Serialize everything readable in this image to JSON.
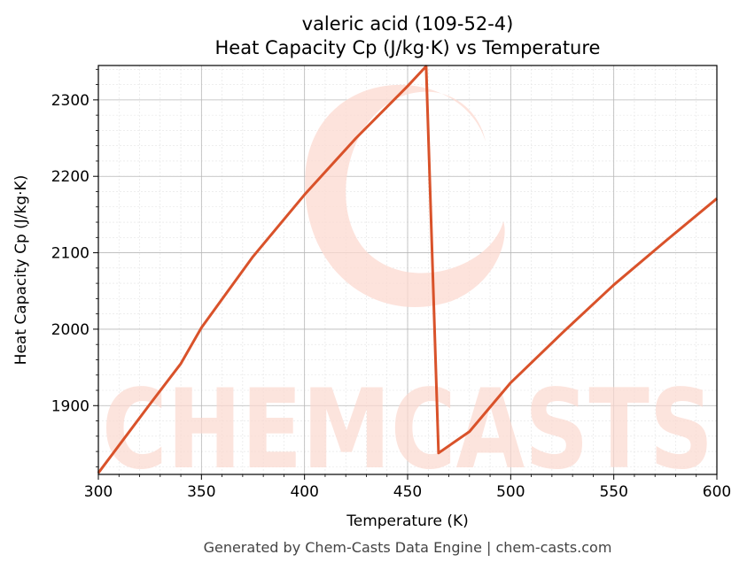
{
  "chart_data": {
    "type": "line",
    "title": "valeric acid (109-52-4)",
    "subtitle": "Heat Capacity Cp (J/kg·K) vs Temperature",
    "xlabel": "Temperature (K)",
    "ylabel": "Heat Capacity Cp (J/kg·K)",
    "xlim": [
      300,
      600
    ],
    "ylim": [
      1810,
      2345
    ],
    "x_ticks": [
      300,
      350,
      400,
      450,
      500,
      550,
      600
    ],
    "y_ticks": [
      1900,
      2000,
      2100,
      2200,
      2300
    ],
    "grid": true,
    "line_color": "#d9522a",
    "series": [
      {
        "x": [
          300,
          310,
          325,
          340,
          350,
          375,
          400,
          425,
          450,
          459,
          465,
          480,
          500,
          525,
          550,
          575,
          600
        ],
        "y": [
          1812,
          1848,
          1902,
          1955,
          2002,
          2095,
          2176,
          2250,
          2318,
          2344,
          1838,
          1866,
          1930,
          1995,
          2058,
          2115,
          2171
        ]
      }
    ]
  },
  "watermark": {
    "text": "CHEMCASTS",
    "color": "#fcd9d0"
  },
  "footer": "Generated by Chem-Casts Data Engine | chem-casts.com"
}
